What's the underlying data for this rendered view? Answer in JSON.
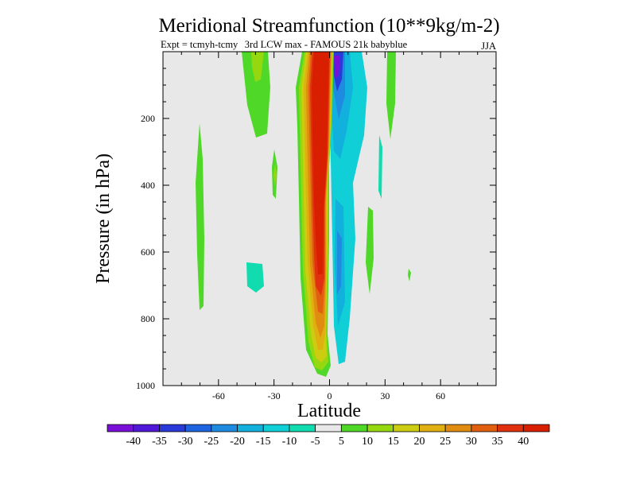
{
  "chart_data": {
    "type": "contour",
    "title": "Meridional Streamfunction (10**9kg/m-2)",
    "subtitle_left": "Expt = tcmyh-tcmy",
    "subtitle_center": "3rd LCW max - FAMOUS 21k babyblue",
    "season": "JJA",
    "xlabel": "Latitude",
    "ylabel": "Pressure (in hPa)",
    "xlim": [
      -90,
      90
    ],
    "ylim": [
      1000,
      0
    ],
    "x_ticks": [
      -60,
      -30,
      0,
      30,
      60
    ],
    "y_ticks": [
      200,
      400,
      600,
      800,
      1000
    ],
    "colorbar": {
      "levels": [
        "-40",
        "-35",
        "-30",
        "-25",
        "-20",
        "-15",
        "-10",
        "-5",
        "5",
        "10",
        "15",
        "20",
        "25",
        "30",
        "35",
        "40"
      ],
      "colors": [
        "#7a10d8",
        "#5218d8",
        "#2a3ad8",
        "#1e64e0",
        "#1e8ae0",
        "#12b0dc",
        "#10cfd6",
        "#10dcb0",
        "#e8e8e8",
        "#50d828",
        "#96d810",
        "#cccc10",
        "#e0b010",
        "#e08c10",
        "#e06010",
        "#e03010",
        "#d82000"
      ]
    },
    "features": [
      {
        "name": "tropical positive cell",
        "lat_range": [
          -12,
          2
        ],
        "pressure_range": [
          0,
          975
        ],
        "max_value": 40
      },
      {
        "name": "tropical negative cell",
        "lat_range": [
          3,
          22
        ],
        "pressure_range": [
          0,
          920
        ],
        "min_value": -40
      },
      {
        "name": "southern weak positive cells",
        "lat_range": [
          -70,
          -25
        ],
        "pressure_range": [
          0,
          760
        ],
        "max_value": 10
      },
      {
        "name": "northern weak positive cells",
        "lat_range": [
          20,
          45
        ],
        "pressure_range": [
          0,
          700
        ],
        "max_value": 10
      }
    ]
  }
}
